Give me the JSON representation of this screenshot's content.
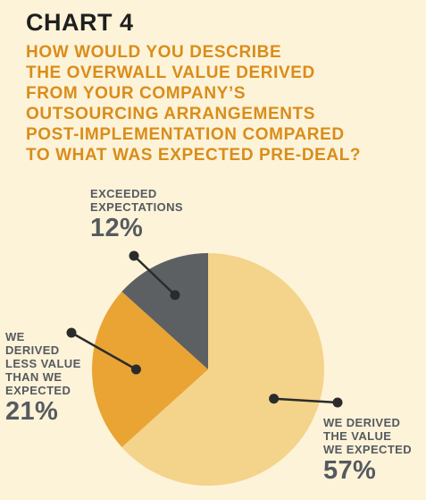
{
  "chart_number": "CHART 4",
  "title_lines": [
    "HOW WOULD YOU DESCRIBE",
    "THE OVERWALL VALUE DERIVED",
    "FROM YOUR COMPANY’S",
    "OUTSOURCING ARRANGEMENTS",
    "POST-IMPLEMENTATION COMPARED",
    "TO WHAT WAS EXPECTED PRE-DEAL?"
  ],
  "chart_data": {
    "type": "pie",
    "title": "HOW WOULD YOU DESCRIBE THE OVERWALL VALUE DERIVED FROM YOUR COMPANY’S OUTSOURCING ARRANGEMENTS POST-IMPLEMENTATION COMPARED TO WHAT WAS EXPECTED PRE-DEAL?",
    "slices": [
      {
        "label_lines": [
          "WE DERIVED",
          "THE VALUE",
          "WE EXPECTED"
        ],
        "value": 57,
        "value_label": "57%",
        "color": "#f4d38a"
      },
      {
        "label_lines": [
          "WE",
          "DERIVED",
          "LESS VALUE",
          "THAN WE",
          "EXPECTED"
        ],
        "value": 21,
        "value_label": "21%",
        "color": "#e9a434"
      },
      {
        "label_lines": [
          "EXCEEDED",
          "EXPECTATIONS"
        ],
        "value": 12,
        "value_label": "12%",
        "color": "#5d6063"
      }
    ],
    "legend": "callouts",
    "start_angle": "top, clockwise",
    "colors": {
      "text_title": "#d98d1a",
      "text_labels": "#555a5f",
      "leader": "#2b2b2b",
      "background": "#fdf3d9"
    }
  }
}
